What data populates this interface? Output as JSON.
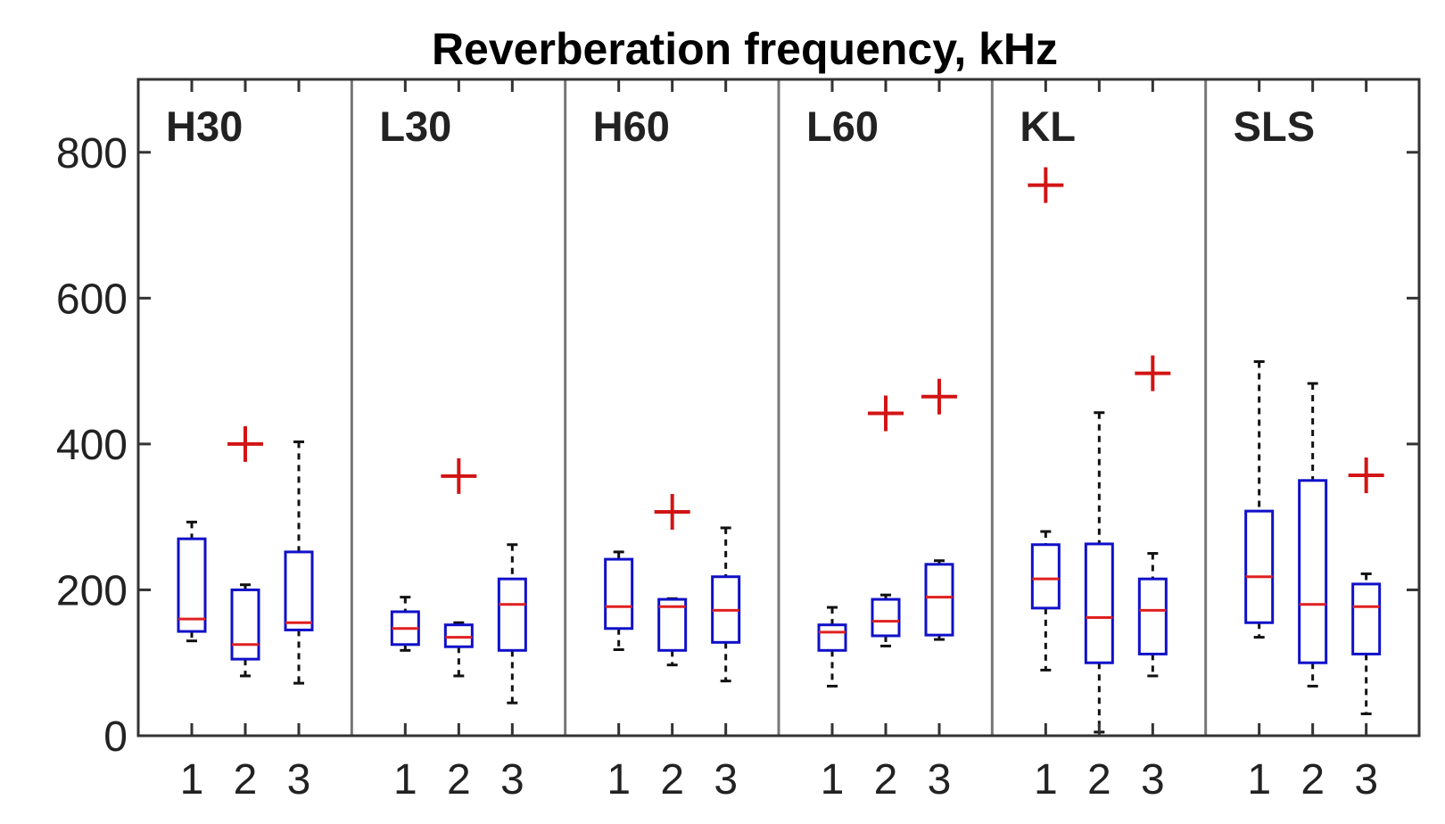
{
  "chart_data": {
    "type": "boxplot",
    "title": "Reverberation frequency, kHz",
    "xlabel": "",
    "ylabel": "",
    "ylim": [
      0,
      900
    ],
    "yticks": [
      0,
      200,
      400,
      600,
      800
    ],
    "ytick_labels": [
      "0",
      "200",
      "400",
      "600",
      "800"
    ],
    "xtick_labels": [
      "1",
      "2",
      "3"
    ],
    "grid": false,
    "colors": {
      "box": "#1010c8",
      "median": "#e02020",
      "outlier": "#d21414",
      "whisker": "#111111",
      "frame": "#333333",
      "divider": "#777777"
    },
    "panels": [
      {
        "name": "H30",
        "boxes": [
          {
            "group": "1",
            "min": 130,
            "q1": 143,
            "median": 160,
            "q3": 270,
            "max": 293,
            "outliers": []
          },
          {
            "group": "2",
            "min": 82,
            "q1": 105,
            "median": 125,
            "q3": 200,
            "max": 207,
            "outliers": [
              400
            ]
          },
          {
            "group": "3",
            "min": 72,
            "q1": 145,
            "median": 155,
            "q3": 252,
            "max": 403,
            "outliers": []
          }
        ]
      },
      {
        "name": "L30",
        "boxes": [
          {
            "group": "1",
            "min": 117,
            "q1": 125,
            "median": 147,
            "q3": 170,
            "max": 190,
            "outliers": []
          },
          {
            "group": "2",
            "min": 82,
            "q1": 122,
            "median": 135,
            "q3": 152,
            "max": 155,
            "outliers": [
              356
            ]
          },
          {
            "group": "3",
            "min": 45,
            "q1": 117,
            "median": 180,
            "q3": 215,
            "max": 262,
            "outliers": []
          }
        ]
      },
      {
        "name": "H60",
        "boxes": [
          {
            "group": "1",
            "min": 118,
            "q1": 147,
            "median": 177,
            "q3": 242,
            "max": 252,
            "outliers": []
          },
          {
            "group": "2",
            "min": 97,
            "q1": 117,
            "median": 177,
            "q3": 187,
            "max": 188,
            "outliers": [
              307
            ]
          },
          {
            "group": "3",
            "min": 75,
            "q1": 128,
            "median": 172,
            "q3": 218,
            "max": 285,
            "outliers": []
          }
        ]
      },
      {
        "name": "L60",
        "boxes": [
          {
            "group": "1",
            "min": 68,
            "q1": 117,
            "median": 142,
            "q3": 152,
            "max": 176,
            "outliers": []
          },
          {
            "group": "2",
            "min": 123,
            "q1": 137,
            "median": 157,
            "q3": 187,
            "max": 193,
            "outliers": [
              442
            ]
          },
          {
            "group": "3",
            "min": 132,
            "q1": 138,
            "median": 190,
            "q3": 235,
            "max": 240,
            "outliers": [
              465
            ]
          }
        ]
      },
      {
        "name": "KL",
        "boxes": [
          {
            "group": "1",
            "min": 90,
            "q1": 175,
            "median": 215,
            "q3": 262,
            "max": 280,
            "outliers": [
              755
            ]
          },
          {
            "group": "2",
            "min": 5,
            "q1": 100,
            "median": 162,
            "q3": 263,
            "max": 443,
            "outliers": []
          },
          {
            "group": "3",
            "min": 82,
            "q1": 112,
            "median": 172,
            "q3": 215,
            "max": 250,
            "outliers": [
              497
            ]
          }
        ]
      },
      {
        "name": "SLS",
        "boxes": [
          {
            "group": "1",
            "min": 135,
            "q1": 155,
            "median": 218,
            "q3": 308,
            "max": 513,
            "outliers": []
          },
          {
            "group": "2",
            "min": 68,
            "q1": 100,
            "median": 180,
            "q3": 350,
            "max": 483,
            "outliers": []
          },
          {
            "group": "3",
            "min": 30,
            "q1": 112,
            "median": 177,
            "q3": 208,
            "max": 222,
            "outliers": [
              357
            ]
          }
        ]
      }
    ]
  }
}
